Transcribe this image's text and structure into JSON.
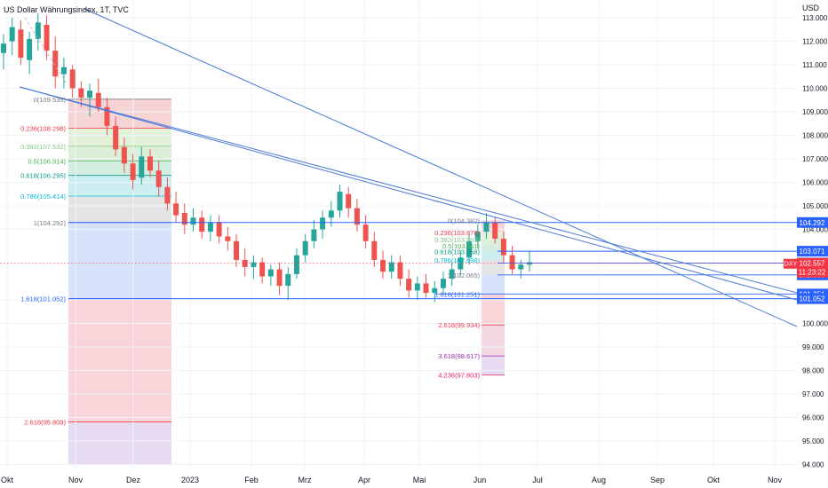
{
  "header": {
    "title": "US Dollar Währungsindex, 1T, TVC"
  },
  "price_axis": {
    "unit": "USD",
    "ticks": [
      "113.000",
      "112.000",
      "111.000",
      "110.000",
      "109.000",
      "108.000",
      "107.000",
      "106.000",
      "105.000",
      "104.000",
      "101.000",
      "100.000",
      "99.000",
      "98.000",
      "97.000",
      "96.000",
      "95.000",
      "94.000"
    ]
  },
  "time_axis": {
    "labels": [
      "Okt",
      "Nov",
      "Dez",
      "2023",
      "Feb",
      "Mrz",
      "Apr",
      "Mai",
      "Jun",
      "Jul",
      "Aug",
      "Sep",
      "Okt",
      "Nov"
    ]
  },
  "colors": {
    "up": "#26a69a",
    "down": "#ef5350",
    "trendline": "#4a78d8",
    "accent_blue": "#2962ff",
    "accent_red": "#f23645"
  },
  "price_badges": [
    {
      "value": "104.292",
      "bg": "#2962ff"
    },
    {
      "value": "103.071",
      "bg": "#2962ff"
    },
    {
      "value": "102.568",
      "bg": "#2962ff"
    },
    {
      "value": "102.065",
      "bg": "#2962ff"
    },
    {
      "value": "101.251",
      "bg": "#2962ff"
    },
    {
      "value": "101.052",
      "bg": "#2962ff"
    }
  ],
  "current_price": {
    "symbol": "DXY",
    "value": "102.557",
    "countdown": "11:23:22"
  },
  "chart_data": {
    "type": "candlestick",
    "title": "US Dollar Währungsindex, 1T, TVC",
    "ylabel": "USD",
    "ylim": [
      94,
      113.5
    ],
    "x_dates": [
      "Okt",
      "Nov",
      "Dez",
      "2023",
      "Feb",
      "Mrz",
      "Apr",
      "Mai",
      "Jun",
      "Jul",
      "Aug",
      "Sep",
      "Okt",
      "Nov"
    ],
    "candles_sampled": [
      [
        111.5,
        112.3,
        110.8,
        111.9
      ],
      [
        112.0,
        113.0,
        111.4,
        112.6
      ],
      [
        112.5,
        112.9,
        111.0,
        111.3
      ],
      [
        111.2,
        112.4,
        110.6,
        112.1
      ],
      [
        112.1,
        113.2,
        111.6,
        112.8
      ],
      [
        112.7,
        113.1,
        111.2,
        111.6
      ],
      [
        111.6,
        112.2,
        110.0,
        110.5
      ],
      [
        110.6,
        111.3,
        110.0,
        110.9
      ],
      [
        110.8,
        111.0,
        109.6,
        110.0
      ],
      [
        110.0,
        110.3,
        109.2,
        109.6
      ],
      [
        109.6,
        110.2,
        108.8,
        109.9
      ],
      [
        109.8,
        110.4,
        109.0,
        109.2
      ],
      [
        109.2,
        109.6,
        108.0,
        108.4
      ],
      [
        108.4,
        108.8,
        107.1,
        107.4
      ],
      [
        107.5,
        107.9,
        106.4,
        106.8
      ],
      [
        106.8,
        107.2,
        105.7,
        106.1
      ],
      [
        106.2,
        107.5,
        105.9,
        107.1
      ],
      [
        107.1,
        107.4,
        106.2,
        106.5
      ],
      [
        106.5,
        106.9,
        105.4,
        105.8
      ],
      [
        105.8,
        106.2,
        104.8,
        105.1
      ],
      [
        105.1,
        105.6,
        104.3,
        104.6
      ],
      [
        104.7,
        105.1,
        103.8,
        104.2
      ],
      [
        104.2,
        104.9,
        103.9,
        104.5
      ],
      [
        104.5,
        104.8,
        103.6,
        103.9
      ],
      [
        103.9,
        104.6,
        103.5,
        104.3
      ],
      [
        104.3,
        104.6,
        103.4,
        103.7
      ],
      [
        103.7,
        104.1,
        103.1,
        103.5
      ],
      [
        103.5,
        103.8,
        102.4,
        102.7
      ],
      [
        102.7,
        103.2,
        102.0,
        102.4
      ],
      [
        102.4,
        102.9,
        101.9,
        102.6
      ],
      [
        102.6,
        102.8,
        101.7,
        102.0
      ],
      [
        102.0,
        102.5,
        101.6,
        102.3
      ],
      [
        102.3,
        102.6,
        101.2,
        101.6
      ],
      [
        101.6,
        102.4,
        101.0,
        102.1
      ],
      [
        102.1,
        103.2,
        101.9,
        102.9
      ],
      [
        102.9,
        103.8,
        102.6,
        103.5
      ],
      [
        103.5,
        104.4,
        103.2,
        104.0
      ],
      [
        104.0,
        104.8,
        103.6,
        104.5
      ],
      [
        104.5,
        105.2,
        104.1,
        104.8
      ],
      [
        104.8,
        105.9,
        104.5,
        105.6
      ],
      [
        105.5,
        105.8,
        104.5,
        104.9
      ],
      [
        104.9,
        105.3,
        103.9,
        104.2
      ],
      [
        104.2,
        104.6,
        103.2,
        103.5
      ],
      [
        103.5,
        103.9,
        102.4,
        102.7
      ],
      [
        102.7,
        103.1,
        101.9,
        102.2
      ],
      [
        102.2,
        102.9,
        101.9,
        102.6
      ],
      [
        102.6,
        102.9,
        101.6,
        101.9
      ],
      [
        101.9,
        102.3,
        101.1,
        101.4
      ],
      [
        101.4,
        102.0,
        101.0,
        101.7
      ],
      [
        101.7,
        102.1,
        101.1,
        101.3
      ],
      [
        101.3,
        101.8,
        100.9,
        101.5
      ],
      [
        101.5,
        102.2,
        101.2,
        101.9
      ],
      [
        101.9,
        102.6,
        101.6,
        102.3
      ],
      [
        102.3,
        103.1,
        102.0,
        102.8
      ],
      [
        102.8,
        103.8,
        102.5,
        103.5
      ],
      [
        103.5,
        104.2,
        103.2,
        103.9
      ],
      [
        103.9,
        104.7,
        103.6,
        104.3
      ],
      [
        104.3,
        104.5,
        103.4,
        103.6
      ],
      [
        103.6,
        103.9,
        102.6,
        102.9
      ],
      [
        102.9,
        103.3,
        102.1,
        102.3
      ],
      [
        102.3,
        102.7,
        101.9,
        102.5
      ],
      [
        102.5,
        103.1,
        102.2,
        102.6
      ]
    ],
    "fib_left": [
      {
        "label": "0(109.535)"
      },
      {
        "label": "0.236(108.298)"
      },
      {
        "label": "0.382(107.532)"
      },
      {
        "label": "0.5(106.914)"
      },
      {
        "label": "0.618(106.295)"
      },
      {
        "label": "0.786(105.414)"
      },
      {
        "label": "1(104.292)"
      },
      {
        "label": "1.618(101.052)"
      },
      {
        "label": "2.618(95.809)"
      }
    ],
    "fib_right": [
      {
        "label": "0(104.382)"
      },
      {
        "label": "0.236(103.876)"
      },
      {
        "label": "0.382(103.563)"
      },
      {
        "label": "0.5(103.311)"
      },
      {
        "label": "0.618(103.058)"
      },
      {
        "label": "0.786(102.698)"
      },
      {
        "label": "1(102.065)"
      },
      {
        "label": "1.618(101.251)"
      },
      {
        "label": "2.618(99.934)"
      },
      {
        "label": "3.618(98.617)"
      },
      {
        "label": "4.236(97.803)"
      }
    ],
    "horizontal_levels": [
      104.292,
      103.071,
      102.568,
      102.065,
      101.251,
      101.052
    ],
    "current_price": 102.557,
    "grid": true
  }
}
